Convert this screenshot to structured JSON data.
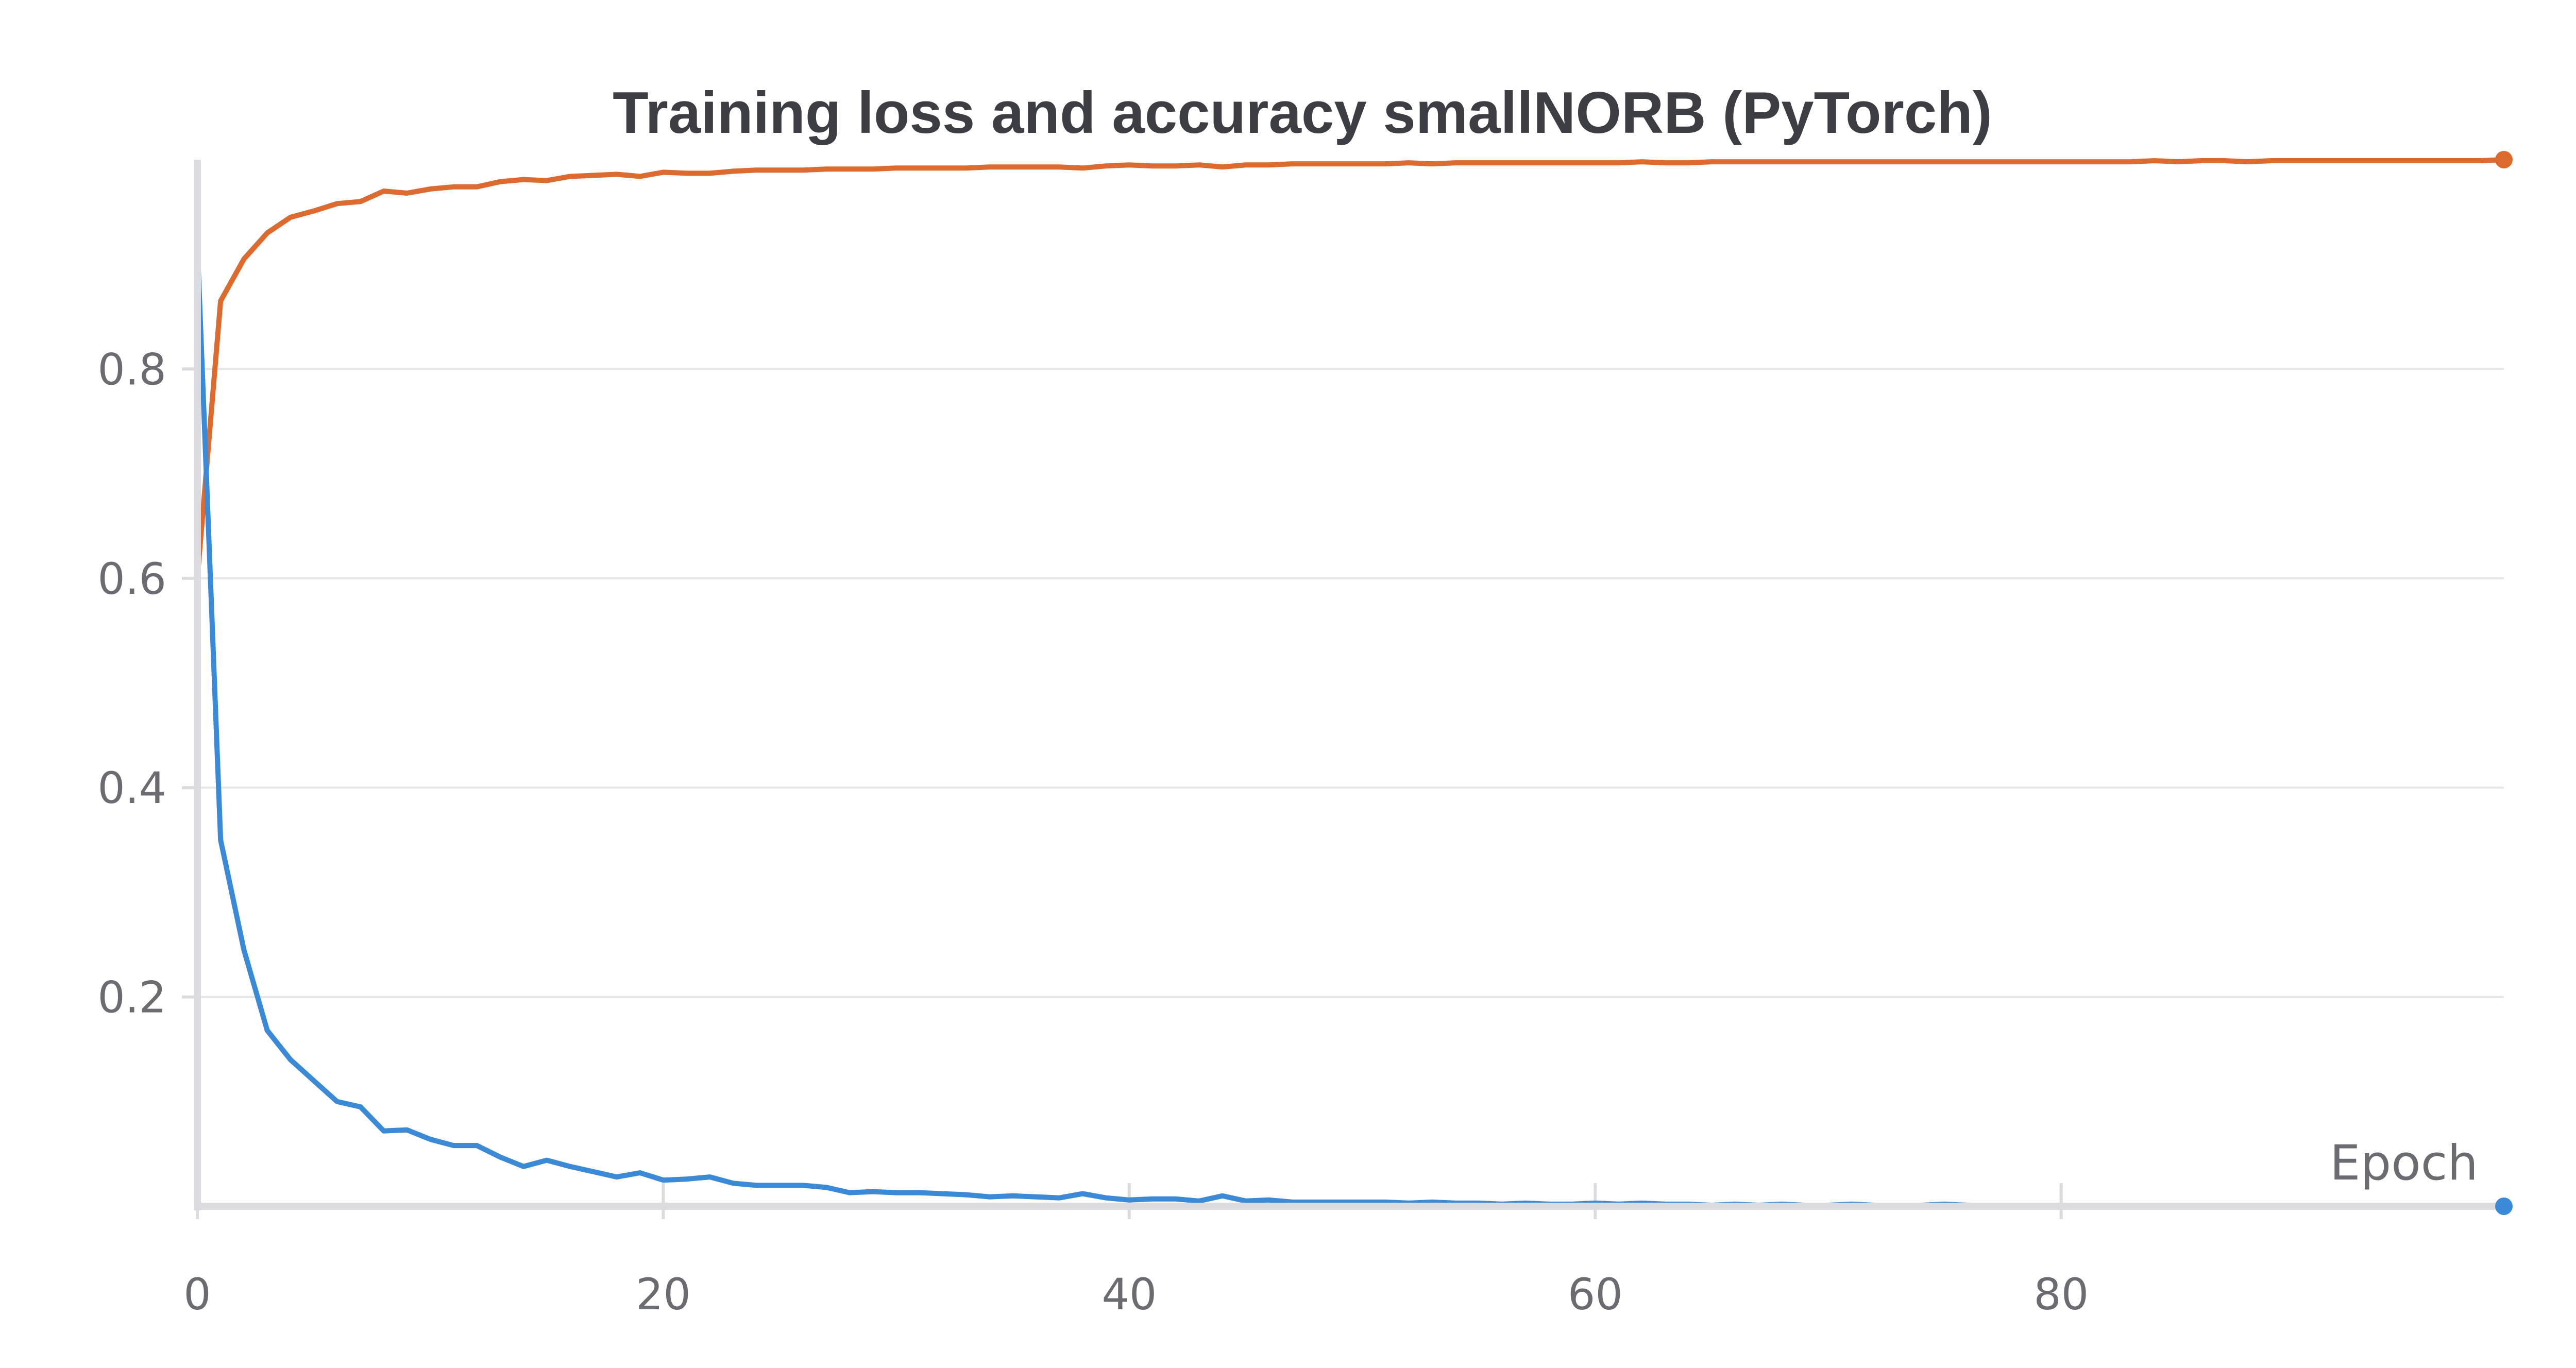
{
  "chart_data": {
    "type": "line",
    "title": "Training loss and accuracy smallNORB (PyTorch)",
    "xlabel": "Epoch",
    "ylabel": "",
    "xlim": [
      0,
      99
    ],
    "ylim": [
      0,
      1.0
    ],
    "x_ticks": [
      0,
      20,
      40,
      60,
      80
    ],
    "y_ticks": [
      0.2,
      0.4,
      0.6,
      0.8
    ],
    "grid": true,
    "legend": "none",
    "colors": {
      "loss": "#3a8ad8",
      "accuracy": "#dd6a2e"
    },
    "series": [
      {
        "key": "accuracy",
        "x": [
          0,
          1,
          2,
          3,
          4,
          5,
          6,
          7,
          8,
          9,
          10,
          11,
          12,
          13,
          14,
          15,
          16,
          17,
          18,
          19,
          20,
          21,
          22,
          23,
          24,
          25,
          26,
          27,
          28,
          29,
          30,
          31,
          32,
          33,
          34,
          35,
          36,
          37,
          38,
          39,
          40,
          41,
          42,
          43,
          44,
          45,
          46,
          47,
          48,
          49,
          50,
          51,
          52,
          53,
          54,
          55,
          56,
          57,
          58,
          59,
          60,
          61,
          62,
          63,
          64,
          65,
          66,
          67,
          68,
          69,
          70,
          71,
          72,
          73,
          74,
          75,
          76,
          77,
          78,
          79,
          80,
          81,
          82,
          83,
          84,
          85,
          86,
          87,
          88,
          89,
          90,
          91,
          92,
          93,
          94,
          95,
          96,
          97,
          98,
          99
        ],
        "y": [
          0.6,
          0.865,
          0.905,
          0.93,
          0.945,
          0.951,
          0.958,
          0.96,
          0.97,
          0.968,
          0.972,
          0.974,
          0.974,
          0.979,
          0.981,
          0.98,
          0.984,
          0.985,
          0.986,
          0.984,
          0.988,
          0.987,
          0.987,
          0.989,
          0.99,
          0.99,
          0.99,
          0.991,
          0.991,
          0.991,
          0.992,
          0.992,
          0.992,
          0.992,
          0.993,
          0.993,
          0.993,
          0.993,
          0.992,
          0.994,
          0.995,
          0.994,
          0.994,
          0.995,
          0.993,
          0.995,
          0.995,
          0.996,
          0.996,
          0.996,
          0.996,
          0.996,
          0.997,
          0.996,
          0.997,
          0.997,
          0.997,
          0.997,
          0.997,
          0.997,
          0.997,
          0.997,
          0.998,
          0.997,
          0.997,
          0.998,
          0.998,
          0.998,
          0.998,
          0.998,
          0.998,
          0.998,
          0.998,
          0.998,
          0.998,
          0.998,
          0.998,
          0.998,
          0.998,
          0.998,
          0.998,
          0.998,
          0.998,
          0.998,
          0.999,
          0.998,
          0.999,
          0.999,
          0.998,
          0.999,
          0.999,
          0.999,
          0.999,
          0.999,
          0.999,
          0.999,
          0.999,
          0.999,
          0.999,
          1.0
        ]
      },
      {
        "key": "loss",
        "x": [
          0,
          1,
          2,
          3,
          4,
          5,
          6,
          7,
          8,
          9,
          10,
          11,
          12,
          13,
          14,
          15,
          16,
          17,
          18,
          19,
          20,
          21,
          22,
          23,
          24,
          25,
          26,
          27,
          28,
          29,
          30,
          31,
          32,
          33,
          34,
          35,
          36,
          37,
          38,
          39,
          40,
          41,
          42,
          43,
          44,
          45,
          46,
          47,
          48,
          49,
          50,
          51,
          52,
          53,
          54,
          55,
          56,
          57,
          58,
          59,
          60,
          61,
          62,
          63,
          64,
          65,
          66,
          67,
          68,
          69,
          70,
          71,
          72,
          73,
          74,
          75,
          76,
          77,
          78,
          79,
          80,
          81,
          82,
          83,
          84,
          85,
          86,
          87,
          88,
          89,
          90,
          91,
          92,
          93,
          94,
          95,
          96,
          97,
          98,
          99
        ],
        "y": [
          0.92,
          0.35,
          0.245,
          0.168,
          0.14,
          0.12,
          0.1,
          0.095,
          0.072,
          0.073,
          0.064,
          0.058,
          0.058,
          0.047,
          0.038,
          0.044,
          0.038,
          0.033,
          0.028,
          0.032,
          0.025,
          0.026,
          0.028,
          0.022,
          0.02,
          0.02,
          0.02,
          0.018,
          0.013,
          0.014,
          0.013,
          0.013,
          0.012,
          0.011,
          0.009,
          0.01,
          0.009,
          0.008,
          0.012,
          0.008,
          0.006,
          0.007,
          0.007,
          0.005,
          0.01,
          0.005,
          0.006,
          0.004,
          0.004,
          0.004,
          0.004,
          0.004,
          0.003,
          0.004,
          0.003,
          0.003,
          0.002,
          0.003,
          0.002,
          0.002,
          0.003,
          0.002,
          0.003,
          0.002,
          0.002,
          0.001,
          0.002,
          0.001,
          0.002,
          0.001,
          0.001,
          0.002,
          0.001,
          0.001,
          0.001,
          0.002,
          0.001,
          0.001,
          0.001,
          0.001,
          0.001,
          0.001,
          0.001,
          0.001,
          0.001,
          0.001,
          0.001,
          0.001,
          0.001,
          0.001,
          0.001,
          0.001,
          0.001,
          0.001,
          0.001,
          0.001,
          0.001,
          0.001,
          0.001,
          0.0
        ]
      }
    ]
  }
}
